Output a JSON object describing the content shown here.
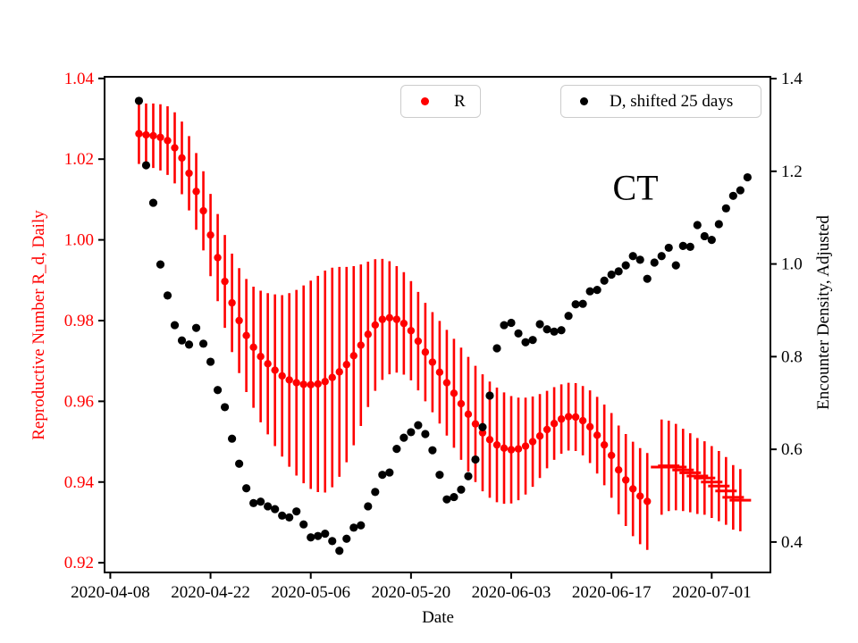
{
  "figure": {
    "background": "#ffffff",
    "annotation": "CT"
  },
  "chart_data": {
    "type": "scatter",
    "title": "",
    "annotation": "CT",
    "xlabel": "Date",
    "grid": false,
    "x_axis": {
      "start_date": "2020-04-08",
      "lim": [
        -0.8,
        92.2
      ],
      "tick_days": [
        0,
        14,
        28,
        42,
        56,
        70,
        84
      ],
      "tick_labels": [
        "2020-04-08",
        "2020-04-22",
        "2020-05-06",
        "2020-05-20",
        "2020-06-03",
        "2020-06-17",
        "2020-07-01"
      ]
    },
    "left_axis": {
      "label": "Reproductive Number R_d, Daily",
      "color": "#ff0000",
      "lim": [
        0.9176,
        1.0404
      ],
      "ticks": [
        0.92,
        0.94,
        0.96,
        0.98,
        1.0,
        1.02,
        1.04
      ],
      "tick_labels": [
        "0.92",
        "0.94",
        "0.96",
        "0.98",
        "1.00",
        "1.02",
        "1.04"
      ]
    },
    "right_axis": {
      "label": "Encounter Density, Adjusted",
      "color": "#000000",
      "lim": [
        0.3343,
        1.4039
      ],
      "ticks": [
        0.4,
        0.6,
        0.8,
        1.0,
        1.2,
        1.4
      ],
      "tick_labels": [
        "0.4",
        "0.6",
        "0.8",
        "1.0",
        "1.2",
        "1.4"
      ]
    },
    "legend": [
      {
        "label": "R",
        "color": "#ff0000"
      },
      {
        "label": "D, shifted 25 days",
        "color": "#000000"
      }
    ],
    "series": [
      {
        "name": "R",
        "gname": "r-series",
        "axis": "left",
        "marker": "circle",
        "marker_size": 4.2,
        "color": "#ff0000",
        "start_day": 4,
        "values": [
          1.0263,
          1.026,
          1.0258,
          1.0254,
          1.0246,
          1.0228,
          1.0203,
          1.0165,
          1.012,
          1.0072,
          1.0012,
          0.9956,
          0.9897,
          0.9844,
          0.98,
          0.9763,
          0.9734,
          0.9711,
          0.9693,
          0.9677,
          0.9663,
          0.9653,
          0.9646,
          0.9642,
          0.9641,
          0.9643,
          0.9649,
          0.9659,
          0.9673,
          0.9691,
          0.9713,
          0.9739,
          0.9766,
          0.9789,
          0.9803,
          0.9807,
          0.9803,
          0.9793,
          0.9775,
          0.9749,
          0.9722,
          0.9697,
          0.9672,
          0.9646,
          0.962,
          0.9594,
          0.9568,
          0.9544,
          0.9522,
          0.9505,
          0.9492,
          0.9484,
          0.948,
          0.9482,
          0.9489,
          0.95,
          0.9514,
          0.953,
          0.9545,
          0.9556,
          0.9562,
          0.9561,
          0.9552,
          0.9537,
          0.9516,
          0.9492,
          0.9466,
          0.943,
          0.9405,
          0.9383,
          0.9365,
          0.9352
        ],
        "errors": [
          0.0075,
          0.0078,
          0.008,
          0.0082,
          0.0085,
          0.0088,
          0.009,
          0.0092,
          0.0095,
          0.0098,
          0.0102,
          0.0108,
          0.0115,
          0.0122,
          0.013,
          0.014,
          0.015,
          0.0163,
          0.0175,
          0.0188,
          0.02,
          0.0215,
          0.023,
          0.0245,
          0.0258,
          0.0268,
          0.0275,
          0.0272,
          0.026,
          0.0242,
          0.0222,
          0.02,
          0.018,
          0.0163,
          0.015,
          0.014,
          0.0132,
          0.0127,
          0.0123,
          0.0122,
          0.0122,
          0.0124,
          0.0127,
          0.0131,
          0.0135,
          0.0139,
          0.0142,
          0.0144,
          0.0145,
          0.0144,
          0.0142,
          0.0138,
          0.0133,
          0.0127,
          0.012,
          0.0112,
          0.0104,
          0.0096,
          0.009,
          0.0086,
          0.0084,
          0.0084,
          0.0086,
          0.009,
          0.0095,
          0.01,
          0.0105,
          0.011,
          0.0114,
          0.0117,
          0.0119,
          0.012
        ]
      },
      {
        "name": "R, interval markers",
        "gname": "r-interval-series",
        "axis": "left",
        "marker": "hline",
        "marker_size": 12,
        "color": "#ff0000",
        "start_day": 77,
        "values": [
          0.9437,
          0.944,
          0.9437,
          0.943,
          0.9423,
          0.9415,
          0.941,
          0.94,
          0.939,
          0.9378,
          0.9362,
          0.9355
        ],
        "errors": [
          0.0118,
          0.0112,
          0.0107,
          0.0102,
          0.0098,
          0.0094,
          0.0091,
          0.0089,
          0.0087,
          0.0084,
          0.008,
          0.0077
        ]
      },
      {
        "name": "D, shifted 25 days",
        "gname": "d-series",
        "axis": "right",
        "marker": "circle",
        "marker_size": 4.6,
        "color": "#000000",
        "start_day": 4,
        "values": [
          1.352,
          1.213,
          1.132,
          0.999,
          0.932,
          0.868,
          0.835,
          0.826,
          0.862,
          0.828,
          0.789,
          0.728,
          0.691,
          0.623,
          0.569,
          0.516,
          0.484,
          0.487,
          0.477,
          0.471,
          0.457,
          0.453,
          0.466,
          0.438,
          0.41,
          0.413,
          0.418,
          0.402,
          0.381,
          0.407,
          0.431,
          0.436,
          0.477,
          0.508,
          0.545,
          0.55,
          0.601,
          0.625,
          0.637,
          0.652,
          0.633,
          0.598,
          0.545,
          0.492,
          0.497,
          0.513,
          0.542,
          0.578,
          0.648,
          0.716,
          0.818,
          0.868,
          0.873,
          0.85,
          0.831,
          0.836,
          0.87,
          0.859,
          0.854,
          0.857,
          0.888,
          0.913,
          0.914,
          0.941,
          0.944,
          0.964,
          0.977,
          0.984,
          0.997,
          1.017,
          1.009,
          0.968,
          1.003,
          1.017,
          1.035,
          0.997,
          1.039,
          1.037,
          1.084,
          1.06,
          1.052,
          1.086,
          1.12,
          1.147,
          1.159,
          1.187
        ]
      }
    ]
  }
}
